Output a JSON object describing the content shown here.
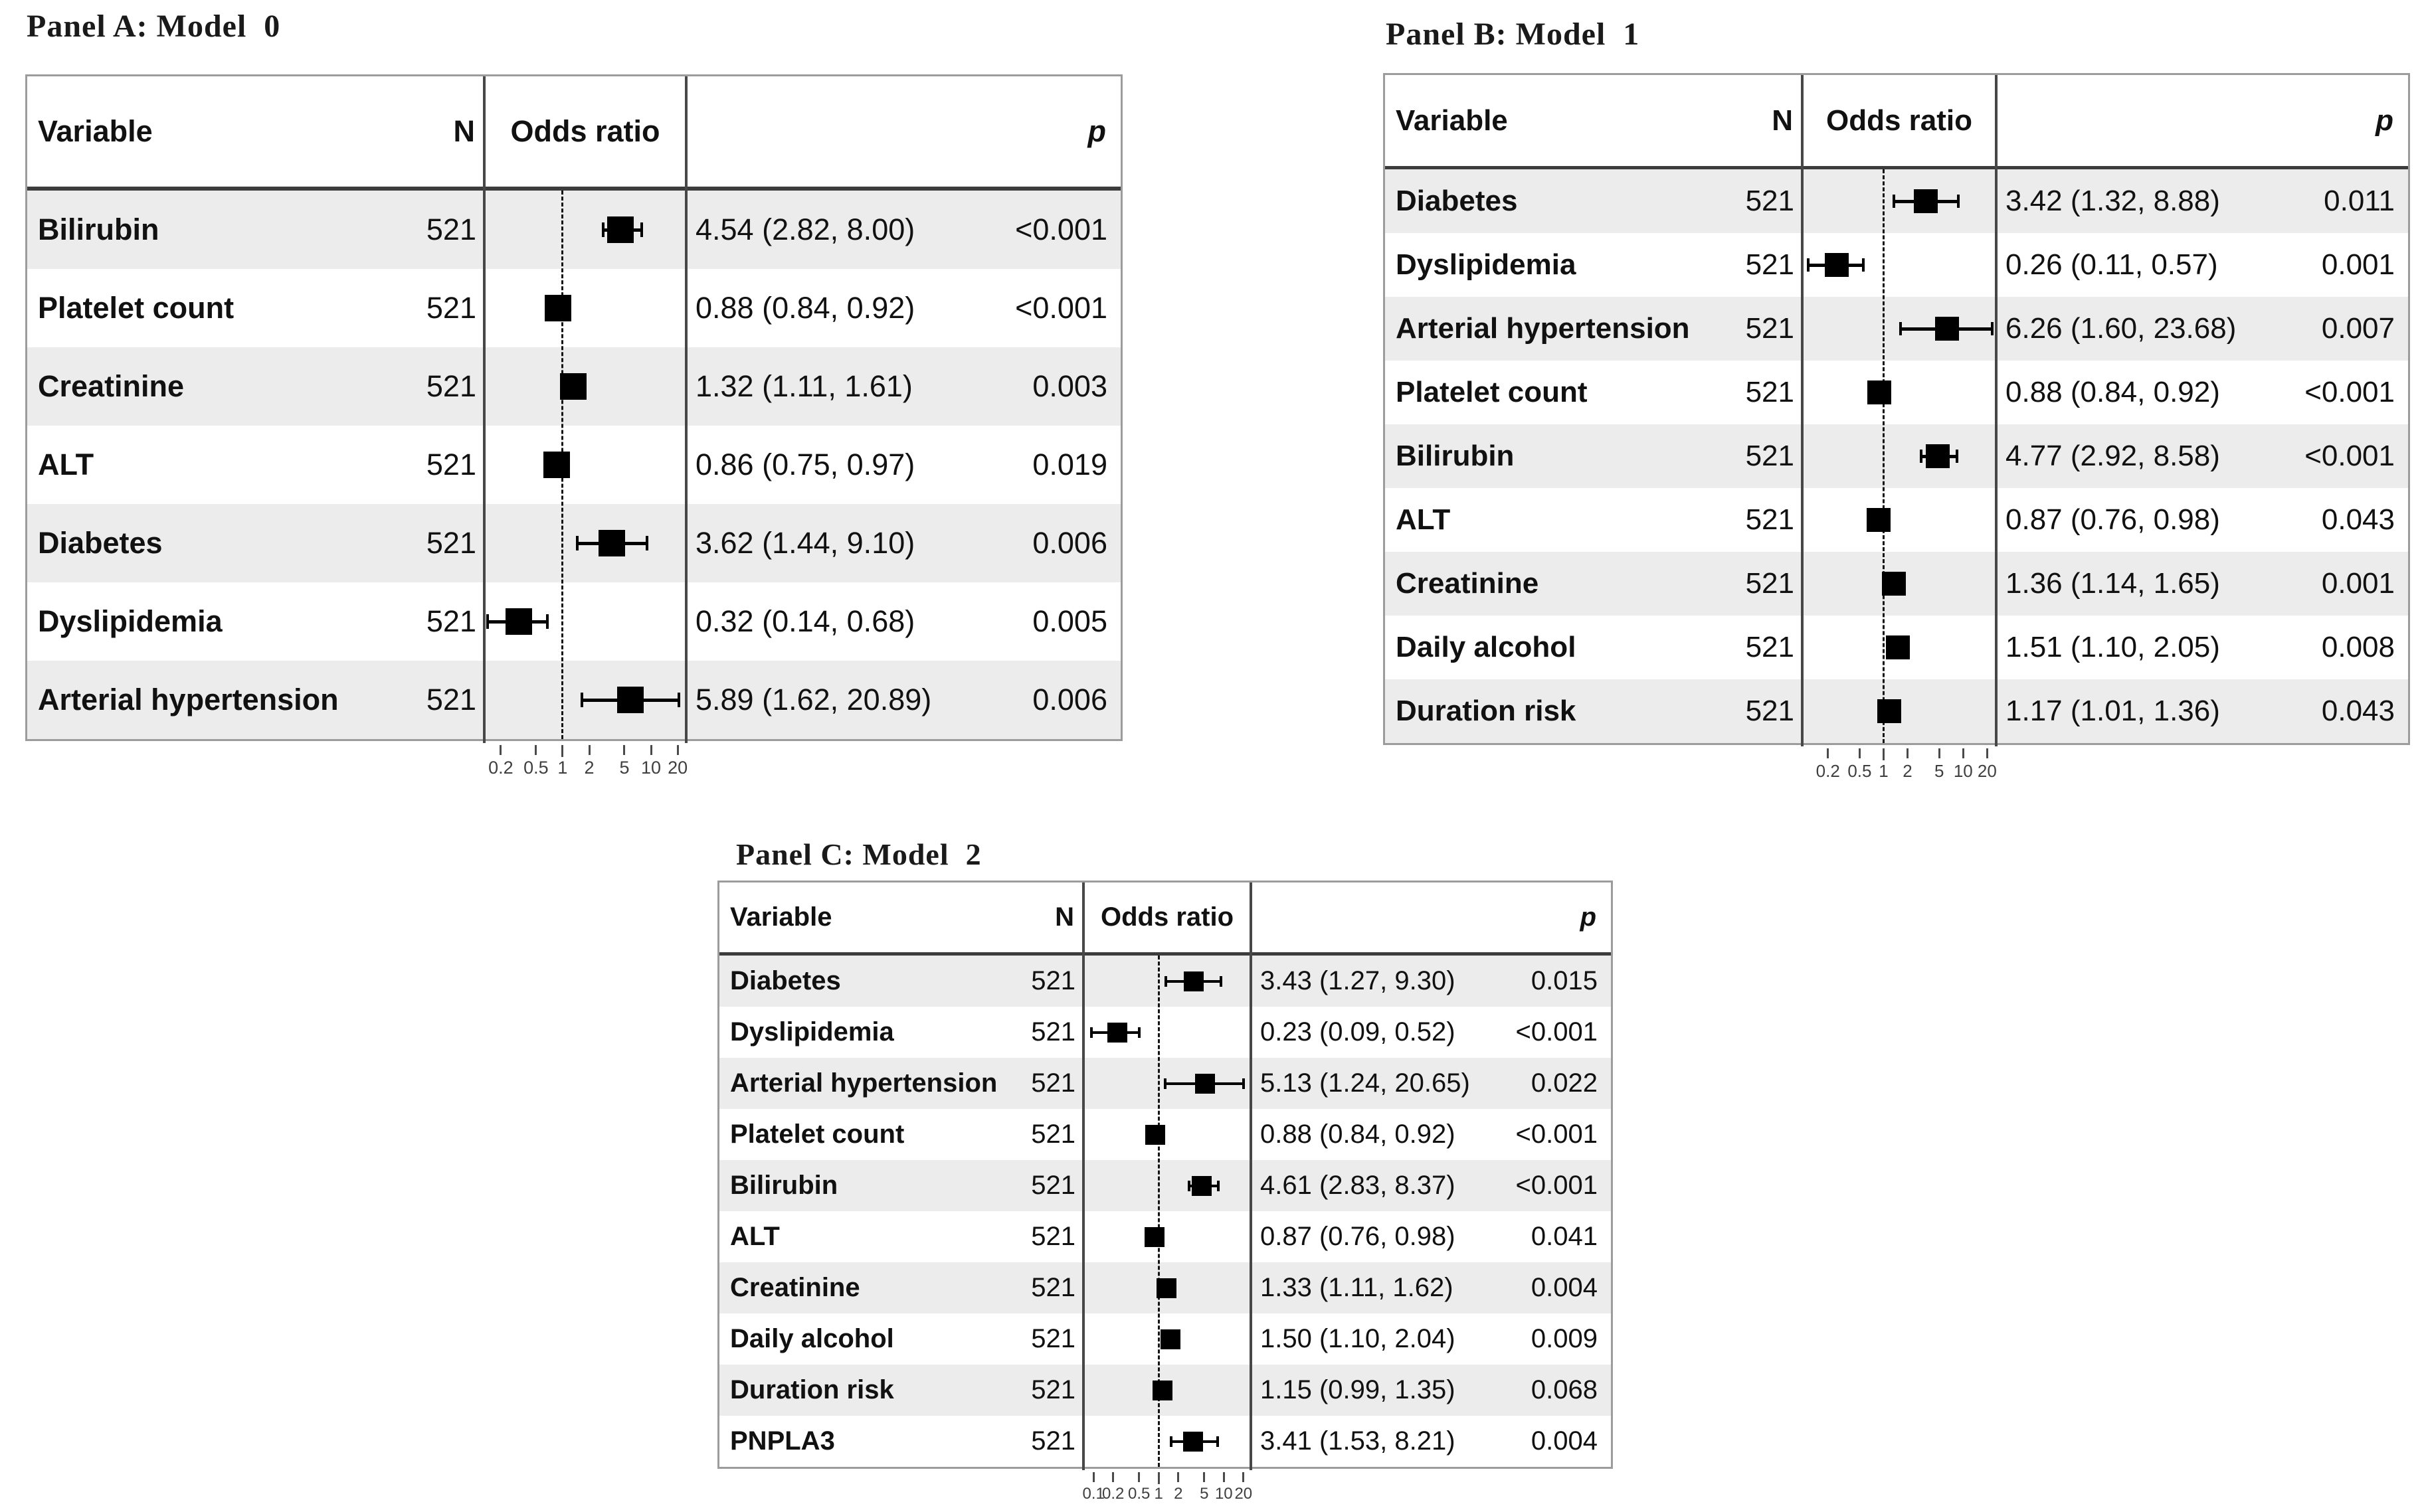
{
  "page": {
    "background": "#ffffff"
  },
  "colors": {
    "row_shade": "#ececec",
    "row_plain": "#ffffff",
    "outer_border": "#9c9c9c",
    "header_rule": "#3c3c3c",
    "column_divider": "#474747",
    "reference_line": "#141414",
    "marker": "#000000",
    "tick_label": "#3f3f3f"
  },
  "chart_data": [
    {
      "type": "scatter",
      "subtype": "forest-plot",
      "title": "Panel A: Model  0",
      "headers": {
        "variable": "Variable",
        "n": "N",
        "odds_ratio": "Odds ratio",
        "p": "p"
      },
      "x_scale": "log",
      "x_domain": [
        0.13,
        25
      ],
      "x_ticks": [
        0.2,
        0.5,
        1,
        2,
        5,
        10,
        20
      ],
      "x_tick_labels": [
        "0.2",
        "0.5",
        "1",
        "2",
        "5",
        "10",
        "20"
      ],
      "reference_line": 1,
      "rows": [
        {
          "variable": "Bilirubin",
          "n": "521",
          "or": 4.54,
          "ci_low": 2.82,
          "ci_high": 8.0,
          "estimate": "4.54 (2.82, 8.00)",
          "p": "<0.001"
        },
        {
          "variable": "Platelet count",
          "n": "521",
          "or": 0.88,
          "ci_low": 0.84,
          "ci_high": 0.92,
          "estimate": "0.88 (0.84, 0.92)",
          "p": "<0.001"
        },
        {
          "variable": "Creatinine",
          "n": "521",
          "or": 1.32,
          "ci_low": 1.11,
          "ci_high": 1.61,
          "estimate": "1.32 (1.11, 1.61)",
          "p": "0.003"
        },
        {
          "variable": "ALT",
          "n": "521",
          "or": 0.86,
          "ci_low": 0.75,
          "ci_high": 0.97,
          "estimate": "0.86 (0.75, 0.97)",
          "p": "0.019"
        },
        {
          "variable": "Diabetes",
          "n": "521",
          "or": 3.62,
          "ci_low": 1.44,
          "ci_high": 9.1,
          "estimate": "3.62 (1.44, 9.10)",
          "p": "0.006"
        },
        {
          "variable": "Dyslipidemia",
          "n": "521",
          "or": 0.32,
          "ci_low": 0.14,
          "ci_high": 0.68,
          "estimate": "0.32 (0.14, 0.68)",
          "p": "0.005"
        },
        {
          "variable": "Arterial hypertension",
          "n": "521",
          "or": 5.89,
          "ci_low": 1.62,
          "ci_high": 20.89,
          "estimate": "5.89 (1.62, 20.89)",
          "p": "0.006"
        }
      ]
    },
    {
      "type": "scatter",
      "subtype": "forest-plot",
      "title": "Panel B: Model  1",
      "headers": {
        "variable": "Variable",
        "n": "N",
        "odds_ratio": "Odds ratio",
        "p": "p"
      },
      "x_scale": "log",
      "x_domain": [
        0.095,
        26
      ],
      "x_ticks": [
        0.2,
        0.5,
        1,
        2,
        5,
        10,
        20
      ],
      "x_tick_labels": [
        "0.2",
        "0.5",
        "1",
        "2",
        "5",
        "10",
        "20"
      ],
      "reference_line": 1,
      "rows": [
        {
          "variable": "Diabetes",
          "n": "521",
          "or": 3.42,
          "ci_low": 1.32,
          "ci_high": 8.88,
          "estimate": "3.42 (1.32, 8.88)",
          "p": "0.011"
        },
        {
          "variable": "Dyslipidemia",
          "n": "521",
          "or": 0.26,
          "ci_low": 0.11,
          "ci_high": 0.57,
          "estimate": "0.26 (0.11, 0.57)",
          "p": "0.001"
        },
        {
          "variable": "Arterial hypertension",
          "n": "521",
          "or": 6.26,
          "ci_low": 1.6,
          "ci_high": 23.68,
          "estimate": "6.26 (1.60, 23.68)",
          "p": "0.007"
        },
        {
          "variable": "Platelet count",
          "n": "521",
          "or": 0.88,
          "ci_low": 0.84,
          "ci_high": 0.92,
          "estimate": "0.88 (0.84, 0.92)",
          "p": "<0.001"
        },
        {
          "variable": "Bilirubin",
          "n": "521",
          "or": 4.77,
          "ci_low": 2.92,
          "ci_high": 8.58,
          "estimate": "4.77 (2.92, 8.58)",
          "p": "<0.001"
        },
        {
          "variable": "ALT",
          "n": "521",
          "or": 0.87,
          "ci_low": 0.76,
          "ci_high": 0.98,
          "estimate": "0.87 (0.76, 0.98)",
          "p": "0.043"
        },
        {
          "variable": "Creatinine",
          "n": "521",
          "or": 1.36,
          "ci_low": 1.14,
          "ci_high": 1.65,
          "estimate": "1.36 (1.14, 1.65)",
          "p": "0.001"
        },
        {
          "variable": "Daily alcohol",
          "n": "521",
          "or": 1.51,
          "ci_low": 1.1,
          "ci_high": 2.05,
          "estimate": "1.51 (1.10, 2.05)",
          "p": "0.008"
        },
        {
          "variable": "Duration risk",
          "n": "521",
          "or": 1.17,
          "ci_low": 1.01,
          "ci_high": 1.36,
          "estimate": "1.17 (1.01, 1.36)",
          "p": "0.043"
        }
      ]
    },
    {
      "type": "scatter",
      "subtype": "forest-plot",
      "title": "Panel C: Model  2",
      "headers": {
        "variable": "Variable",
        "n": "N",
        "odds_ratio": "Odds ratio",
        "p": "p"
      },
      "x_scale": "log",
      "x_domain": [
        0.07,
        26
      ],
      "x_ticks": [
        0.1,
        0.2,
        0.5,
        1,
        2,
        5,
        10,
        20
      ],
      "x_tick_labels": [
        "0.1",
        "0.2",
        "0.5",
        "1",
        "2",
        "5",
        "10",
        "20"
      ],
      "reference_line": 1,
      "rows": [
        {
          "variable": "Diabetes",
          "n": "521",
          "or": 3.43,
          "ci_low": 1.27,
          "ci_high": 9.3,
          "estimate": "3.43 (1.27, 9.30)",
          "p": "0.015"
        },
        {
          "variable": "Dyslipidemia",
          "n": "521",
          "or": 0.23,
          "ci_low": 0.09,
          "ci_high": 0.52,
          "estimate": "0.23 (0.09, 0.52)",
          "p": "<0.001"
        },
        {
          "variable": "Arterial hypertension",
          "n": "521",
          "or": 5.13,
          "ci_low": 1.24,
          "ci_high": 20.65,
          "estimate": "5.13 (1.24, 20.65)",
          "p": "0.022"
        },
        {
          "variable": "Platelet count",
          "n": "521",
          "or": 0.88,
          "ci_low": 0.84,
          "ci_high": 0.92,
          "estimate": "0.88 (0.84, 0.92)",
          "p": "<0.001"
        },
        {
          "variable": "Bilirubin",
          "n": "521",
          "or": 4.61,
          "ci_low": 2.83,
          "ci_high": 8.37,
          "estimate": "4.61 (2.83, 8.37)",
          "p": "<0.001"
        },
        {
          "variable": "ALT",
          "n": "521",
          "or": 0.87,
          "ci_low": 0.76,
          "ci_high": 0.98,
          "estimate": "0.87 (0.76, 0.98)",
          "p": "0.041"
        },
        {
          "variable": "Creatinine",
          "n": "521",
          "or": 1.33,
          "ci_low": 1.11,
          "ci_high": 1.62,
          "estimate": "1.33 (1.11, 1.62)",
          "p": "0.004"
        },
        {
          "variable": "Daily alcohol",
          "n": "521",
          "or": 1.5,
          "ci_low": 1.1,
          "ci_high": 2.04,
          "estimate": "1.50 (1.10, 2.04)",
          "p": "0.009"
        },
        {
          "variable": "Duration risk",
          "n": "521",
          "or": 1.15,
          "ci_low": 0.99,
          "ci_high": 1.35,
          "estimate": "1.15 (0.99, 1.35)",
          "p": "0.068"
        },
        {
          "variable": "PNPLA3",
          "n": "521",
          "or": 3.41,
          "ci_low": 1.53,
          "ci_high": 8.21,
          "estimate": "3.41 (1.53, 8.21)",
          "p": "0.004"
        }
      ]
    }
  ]
}
